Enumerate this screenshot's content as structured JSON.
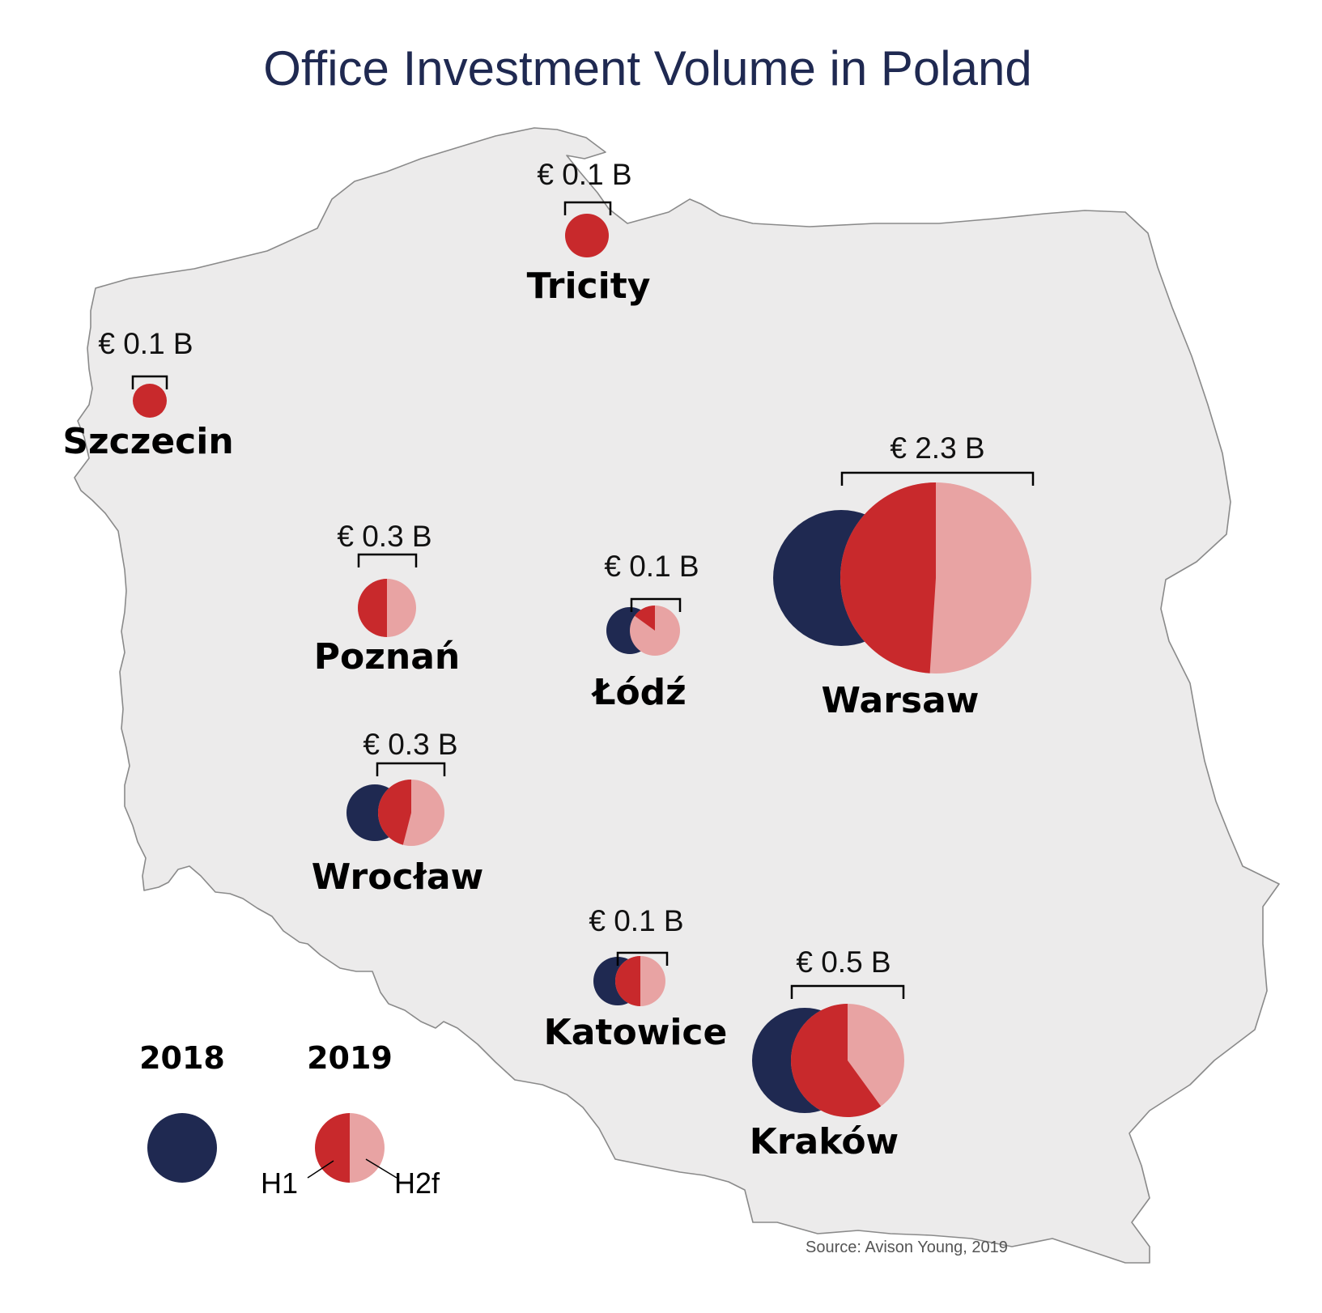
{
  "title": "Office Investment Volume in Poland",
  "source": "Source: Avison Young, 2019",
  "colors": {
    "land": "#ecebeb",
    "border": "#8a8a8a",
    "y2018": "#1f2951",
    "h1_2019": "#c8292c",
    "h2_2019": "#e8a3a3"
  },
  "legend": {
    "year_2018": "2018",
    "year_2019": "2019",
    "h1": "H1",
    "h2": "H2f"
  },
  "cities": [
    {
      "id": "tricity",
      "name": "Tricity",
      "amount": "€ 0.1 B",
      "share_2018": 0,
      "h1_share": 1.0
    },
    {
      "id": "szczecin",
      "name": "Szczecin",
      "amount": "€ 0.1 B",
      "share_2018": 0,
      "h1_share": 1.0
    },
    {
      "id": "poznan",
      "name": "Poznań",
      "amount": "€ 0.3 B",
      "share_2018": 0,
      "h1_share": 0.5
    },
    {
      "id": "lodz",
      "name": "Łódź",
      "amount": "€ 0.1 B",
      "share_2018": 1,
      "h1_share": 0.15
    },
    {
      "id": "warsaw",
      "name": "Warsaw",
      "amount": "€ 2.3 B",
      "share_2018": 1,
      "h1_share": 0.49
    },
    {
      "id": "wroclaw",
      "name": "Wrocław",
      "amount": "€ 0.3 B",
      "share_2018": 1,
      "h1_share": 0.46
    },
    {
      "id": "katowice",
      "name": "Katowice",
      "amount": "€ 0.1 B",
      "share_2018": 1,
      "h1_share": 0.5
    },
    {
      "id": "krakow",
      "name": "Kraków",
      "amount": "€ 0.5 B",
      "share_2018": 1,
      "h1_share": 0.6
    }
  ]
}
